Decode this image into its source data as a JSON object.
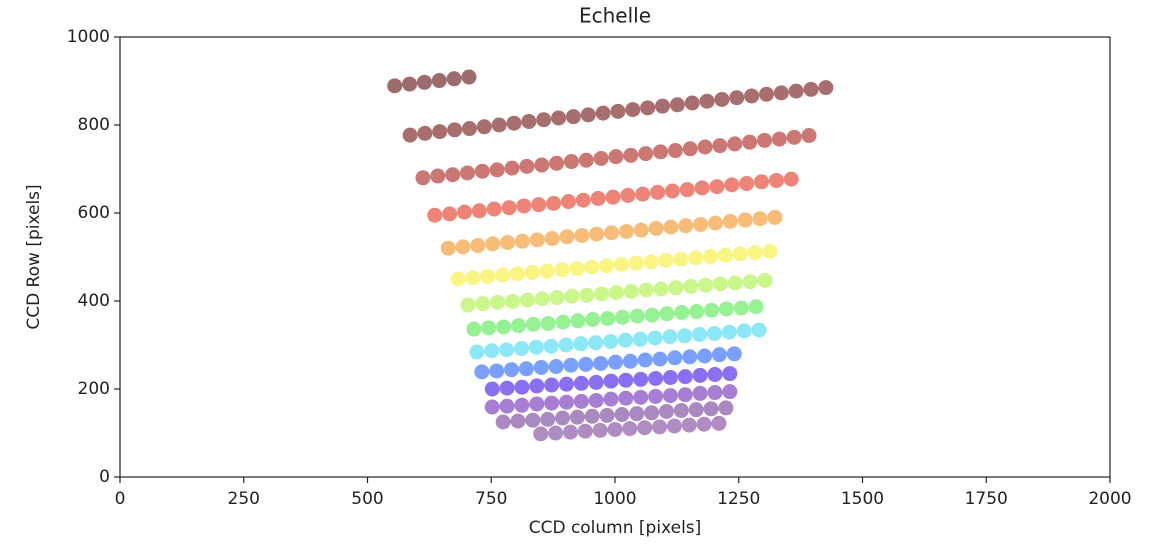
{
  "chart_data": {
    "type": "scatter",
    "title": "Echelle",
    "x_label": "CCD column [pixels]",
    "y_label": "CCD Row [pixels]",
    "xlim": [
      0,
      2000
    ],
    "ylim": [
      0,
      1000
    ],
    "xticks": [
      0,
      250,
      500,
      750,
      1000,
      1250,
      1500,
      1750,
      2000
    ],
    "yticks": [
      0,
      200,
      400,
      600,
      800,
      1000
    ],
    "grid": false,
    "series": [
      {
        "color": "#5a0a0a",
        "x": [
          555,
          585,
          615,
          645,
          675,
          705
        ],
        "y": [
          889,
          893,
          897,
          901,
          905,
          909
        ]
      },
      {
        "color": "#6e0e0e",
        "x": [
          586,
          616,
          646,
          676,
          706,
          736,
          766,
          796,
          826,
          856,
          886,
          916,
          946,
          976,
          1006,
          1036,
          1066,
          1096,
          1126,
          1156,
          1186,
          1216,
          1246,
          1276,
          1306,
          1336,
          1366,
          1396,
          1426
        ],
        "y": [
          777,
          781,
          785,
          789,
          792,
          796,
          800,
          804,
          808,
          812,
          816,
          819,
          823,
          827,
          831,
          835,
          839,
          843,
          846,
          850,
          854,
          858,
          862,
          866,
          870,
          873,
          877,
          881,
          885
        ]
      },
      {
        "color": "#a81c16",
        "x": [
          612,
          642,
          672,
          702,
          732,
          762,
          792,
          822,
          852,
          882,
          912,
          942,
          972,
          1002,
          1032,
          1062,
          1092,
          1122,
          1152,
          1182,
          1212,
          1242,
          1272,
          1302,
          1332,
          1362,
          1392
        ],
        "y": [
          680,
          684,
          687,
          691,
          695,
          698,
          702,
          706,
          709,
          713,
          717,
          720,
          724,
          728,
          731,
          735,
          739,
          742,
          746,
          750,
          753,
          757,
          761,
          765,
          768,
          772,
          776
        ]
      },
      {
        "color": "#e2301c",
        "x": [
          636,
          666,
          696,
          726,
          756,
          786,
          816,
          846,
          876,
          906,
          936,
          966,
          996,
          1026,
          1056,
          1086,
          1116,
          1146,
          1176,
          1206,
          1236,
          1266,
          1296,
          1326,
          1356
        ],
        "y": [
          595,
          598,
          602,
          605,
          609,
          612,
          616,
          619,
          622,
          626,
          629,
          633,
          636,
          640,
          643,
          647,
          650,
          653,
          657,
          660,
          664,
          667,
          671,
          674,
          677
        ]
      },
      {
        "color": "#f39020",
        "x": [
          663,
          693,
          723,
          753,
          783,
          813,
          843,
          873,
          903,
          933,
          963,
          993,
          1023,
          1053,
          1083,
          1113,
          1143,
          1173,
          1203,
          1233,
          1263,
          1293,
          1323
        ],
        "y": [
          520,
          523,
          526,
          530,
          533,
          536,
          539,
          542,
          546,
          549,
          552,
          555,
          558,
          561,
          565,
          568,
          571,
          574,
          577,
          581,
          584,
          587,
          590
        ]
      },
      {
        "color": "#f5ee30",
        "x": [
          683,
          713,
          743,
          773,
          803,
          833,
          863,
          893,
          923,
          953,
          983,
          1013,
          1043,
          1073,
          1103,
          1133,
          1163,
          1193,
          1223,
          1253,
          1283,
          1313
        ],
        "y": [
          450,
          453,
          456,
          459,
          462,
          465,
          468,
          471,
          474,
          477,
          480,
          483,
          486,
          489,
          492,
          495,
          498,
          501,
          504,
          507,
          510,
          513
        ]
      },
      {
        "color": "#a8f03c",
        "x": [
          703,
          733,
          763,
          793,
          823,
          853,
          883,
          913,
          943,
          973,
          1003,
          1033,
          1063,
          1093,
          1123,
          1153,
          1183,
          1213,
          1243,
          1273,
          1303
        ],
        "y": [
          391,
          394,
          397,
          399,
          402,
          405,
          408,
          411,
          413,
          416,
          419,
          422,
          425,
          427,
          430,
          433,
          436,
          439,
          441,
          444,
          447
        ]
      },
      {
        "color": "#4ee84a",
        "x": [
          715,
          745,
          775,
          805,
          835,
          865,
          895,
          925,
          955,
          985,
          1015,
          1045,
          1075,
          1105,
          1135,
          1165,
          1195,
          1225,
          1255,
          1285
        ],
        "y": [
          336,
          339,
          341,
          344,
          347,
          349,
          352,
          355,
          358,
          360,
          363,
          366,
          368,
          371,
          374,
          376,
          379,
          382,
          384,
          387
        ]
      },
      {
        "color": "#40d8f0",
        "x": [
          721,
          751,
          781,
          811,
          841,
          871,
          901,
          931,
          961,
          991,
          1021,
          1051,
          1081,
          1111,
          1141,
          1171,
          1201,
          1231,
          1261,
          1291
        ],
        "y": [
          284,
          287,
          289,
          292,
          295,
          297,
          300,
          303,
          305,
          308,
          311,
          313,
          316,
          319,
          321,
          324,
          326,
          329,
          332,
          334
        ]
      },
      {
        "color": "#2060ff",
        "x": [
          731,
          761,
          791,
          821,
          851,
          881,
          911,
          941,
          971,
          1001,
          1031,
          1061,
          1091,
          1121,
          1151,
          1181,
          1211,
          1241
        ],
        "y": [
          239,
          241,
          244,
          246,
          249,
          251,
          254,
          256,
          258,
          261,
          263,
          266,
          268,
          271,
          273,
          275,
          278,
          280
        ]
      },
      {
        "color": "#3a10e8",
        "x": [
          752,
          782,
          812,
          842,
          872,
          902,
          932,
          962,
          992,
          1022,
          1052,
          1082,
          1112,
          1142,
          1172,
          1202,
          1232
        ],
        "y": [
          200,
          202,
          204,
          207,
          209,
          211,
          213,
          215,
          218,
          220,
          222,
          224,
          226,
          228,
          231,
          233,
          235
        ]
      },
      {
        "color": "#6a2ab8",
        "x": [
          752,
          782,
          812,
          842,
          872,
          902,
          932,
          962,
          992,
          1022,
          1052,
          1082,
          1112,
          1142,
          1172,
          1202,
          1232
        ],
        "y": [
          159,
          161,
          163,
          166,
          168,
          170,
          172,
          174,
          177,
          179,
          181,
          183,
          185,
          187,
          190,
          192,
          194
        ]
      },
      {
        "color": "#723a98",
        "x": [
          774,
          804,
          834,
          864,
          894,
          924,
          954,
          984,
          1014,
          1044,
          1074,
          1104,
          1134,
          1164,
          1194,
          1224
        ],
        "y": [
          125,
          127,
          129,
          131,
          134,
          136,
          138,
          140,
          142,
          144,
          146,
          149,
          151,
          153,
          155,
          157
        ]
      },
      {
        "color": "#7a4098",
        "x": [
          850,
          880,
          910,
          940,
          970,
          1000,
          1030,
          1060,
          1090,
          1120,
          1150,
          1180,
          1210
        ],
        "y": [
          98,
          100,
          102,
          104,
          106,
          108,
          110,
          112,
          114,
          116,
          118,
          120,
          122
        ]
      }
    ]
  }
}
